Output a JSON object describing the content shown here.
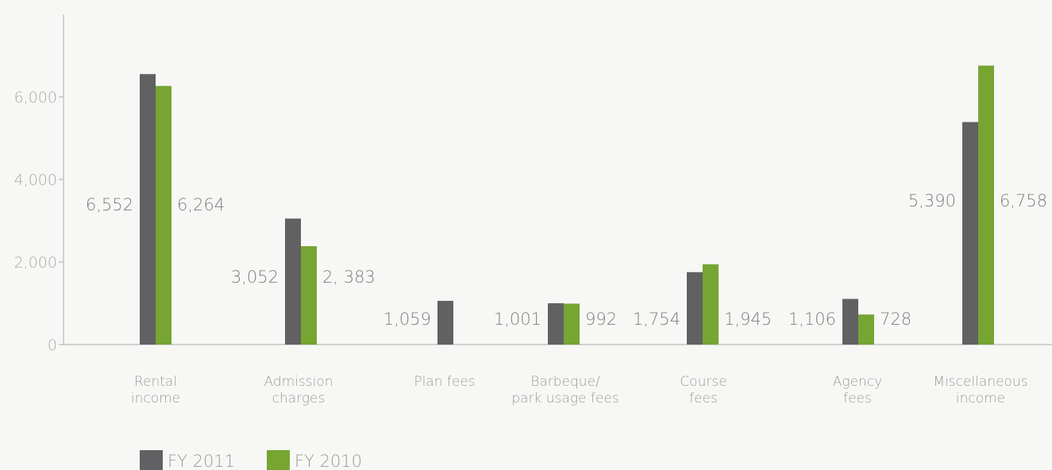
{
  "chart_data": {
    "type": "bar",
    "categories": [
      [
        "Rental",
        "income"
      ],
      [
        "Admission",
        "charges"
      ],
      [
        "Plan fees"
      ],
      [
        "Barbeque/",
        "park usage fees"
      ],
      [
        "Course",
        "fees"
      ],
      [
        "Agency",
        "fees"
      ],
      [
        "Miscellaneous",
        "income"
      ]
    ],
    "series": [
      {
        "name": "FY 2011",
        "color": "#616164",
        "values": [
          6552,
          3052,
          1059,
          1001,
          1754,
          1106,
          5390
        ],
        "labels": [
          "6,552",
          "3,052",
          "1,059",
          "1,001",
          "1,754",
          "1,106",
          "5,390"
        ]
      },
      {
        "name": "FY 2010",
        "color": "#76a532",
        "values": [
          6264,
          2383,
          null,
          992,
          1945,
          728,
          6758
        ],
        "labels": [
          "6,264",
          "2, 383",
          null,
          "992",
          "1,945",
          "728",
          "6,758"
        ]
      }
    ],
    "y_ticks": [
      0,
      2000,
      4000,
      6000
    ],
    "y_tick_labels": [
      "0",
      "2,000",
      "4,000",
      "6,000"
    ],
    "ylim": [
      0,
      8000
    ],
    "grid": false,
    "legend_position": "bottom-left",
    "axis_color": "#b9bbb9"
  }
}
